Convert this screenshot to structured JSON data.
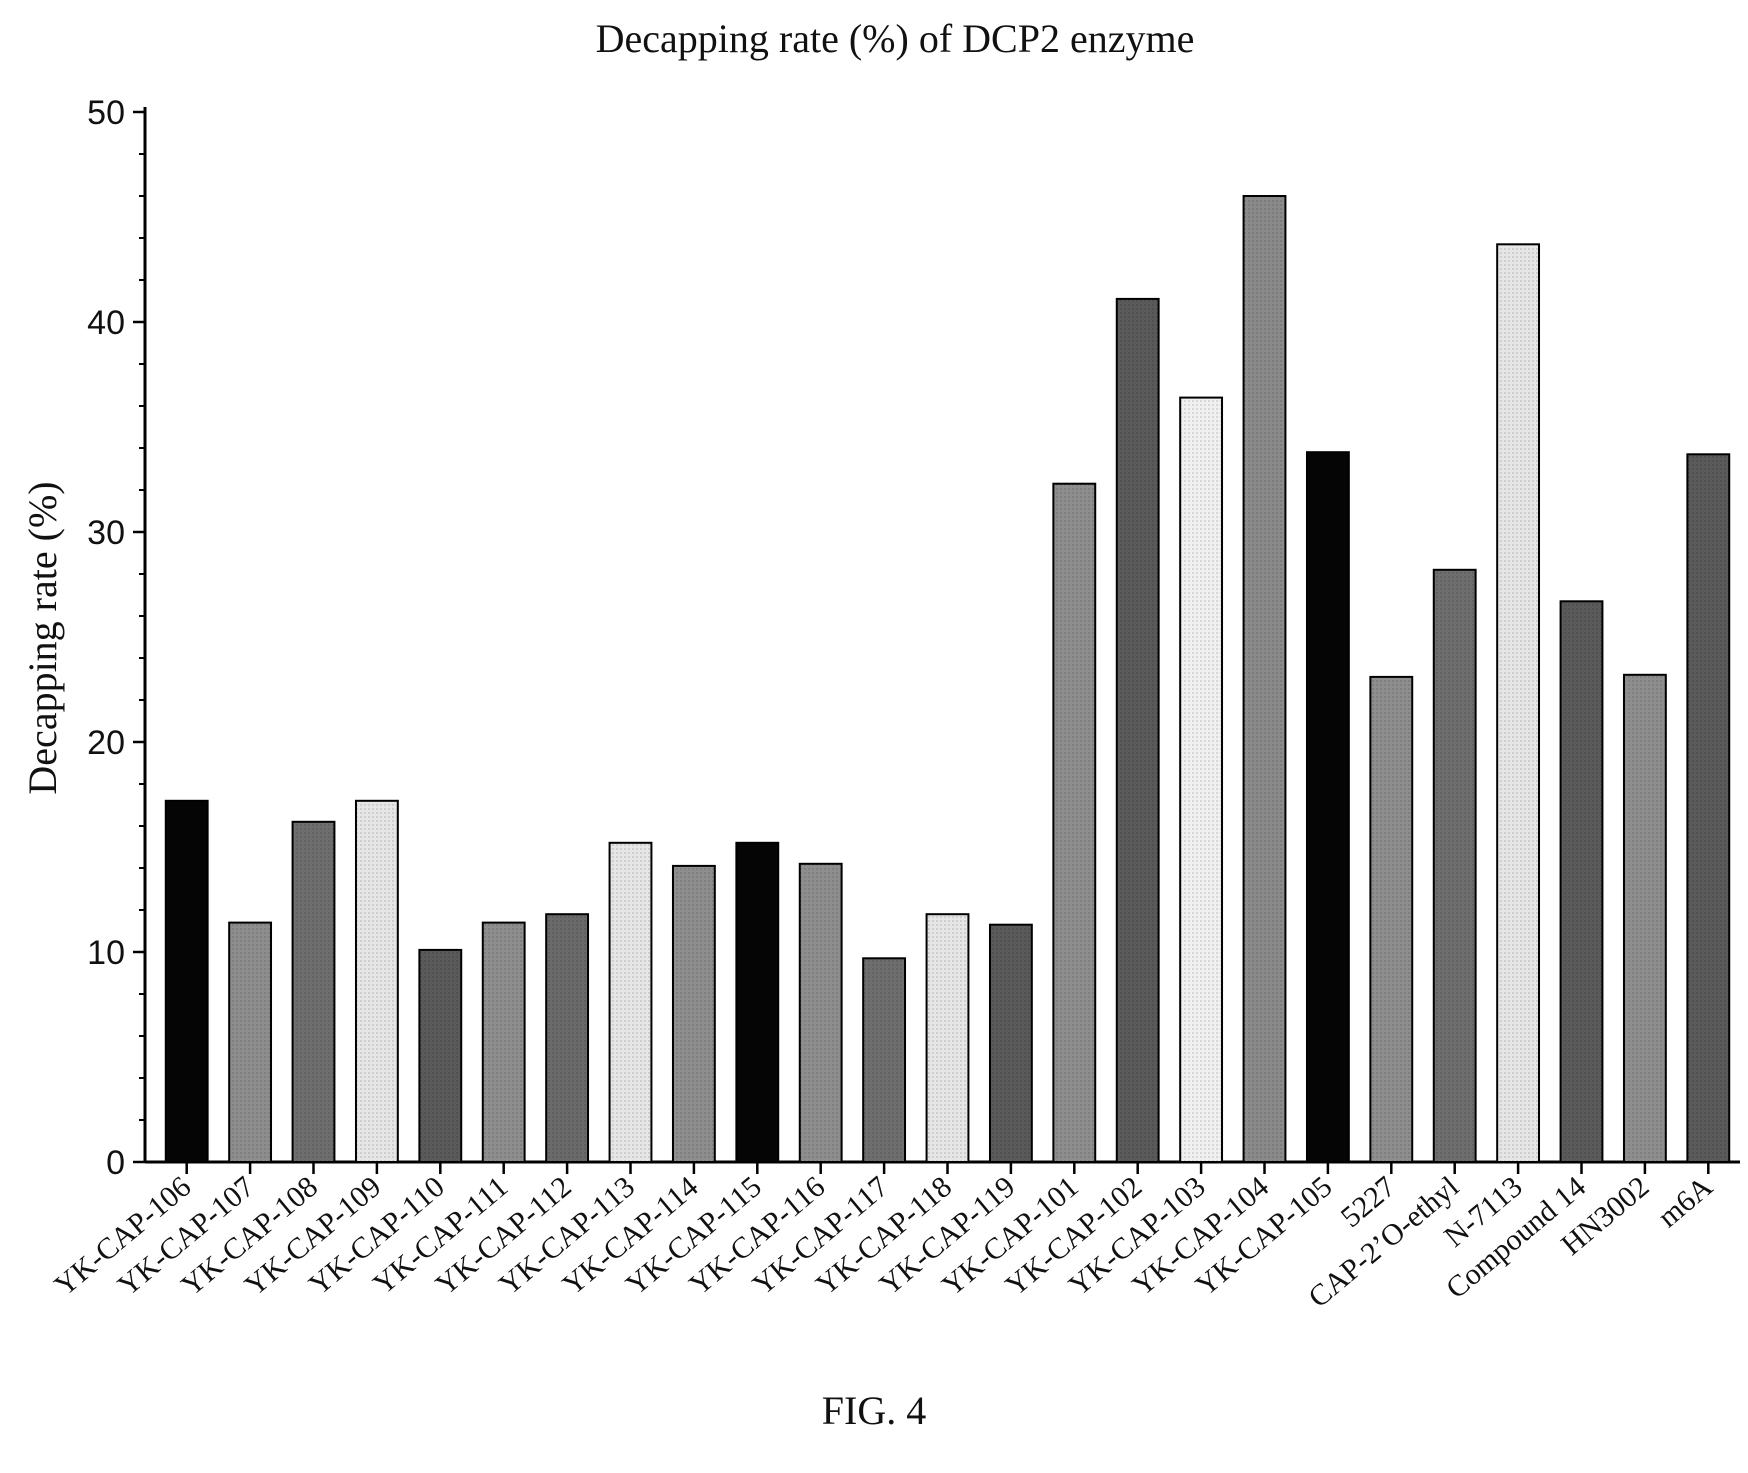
{
  "chart_data": {
    "type": "bar",
    "title": "Decapping rate (%) of DCP2 enzyme",
    "xlabel": "",
    "ylabel": "Decapping rate (%)",
    "ylim": [
      0,
      50
    ],
    "yticks": [
      "0",
      "10",
      "20",
      "30",
      "40",
      "50"
    ],
    "grid": false,
    "legend": "none",
    "categories": [
      "YK-CAP-106",
      "YK-CAP-107",
      "YK-CAP-108",
      "YK-CAP-109",
      "YK-CAP-110",
      "YK-CAP-111",
      "YK-CAP-112",
      "YK-CAP-113",
      "YK-CAP-114",
      "YK-CAP-115",
      "YK-CAP-116",
      "YK-CAP-117",
      "YK-CAP-118",
      "YK-CAP-119",
      "YK-CAP-101",
      "YK-CAP-102",
      "YK-CAP-103",
      "YK-CAP-104",
      "YK-CAP-105",
      "5227",
      "CAP-2’O-ethyl",
      "N-7113",
      "Compound 14",
      "HN3002",
      "m6A"
    ],
    "values": [
      17.2,
      11.4,
      16.2,
      17.2,
      10.1,
      11.4,
      11.8,
      15.2,
      14.1,
      15.2,
      14.2,
      9.7,
      11.8,
      11.3,
      32.3,
      41.1,
      36.4,
      46.0,
      33.8,
      23.1,
      28.2,
      43.7,
      26.7,
      23.2,
      33.7
    ],
    "bar_colors": [
      "#050505",
      "#8e8e8e",
      "#6e6e6e",
      "#e6e6e6",
      "#5a5a5a",
      "#8e8e8e",
      "#6a6a6a",
      "#e6e6e6",
      "#8e8e8e",
      "#050505",
      "#8e8e8e",
      "#6e6e6e",
      "#e6e6e6",
      "#5a5a5a",
      "#8e8e8e",
      "#5a5a5a",
      "#f0f0f0",
      "#8a8a8a",
      "#050505",
      "#8e8e8e",
      "#6e6e6e",
      "#e6e6e6",
      "#5a5a5a",
      "#8e8e8e",
      "#5a5a5a"
    ]
  },
  "figure": {
    "caption": "FIG. 4"
  }
}
